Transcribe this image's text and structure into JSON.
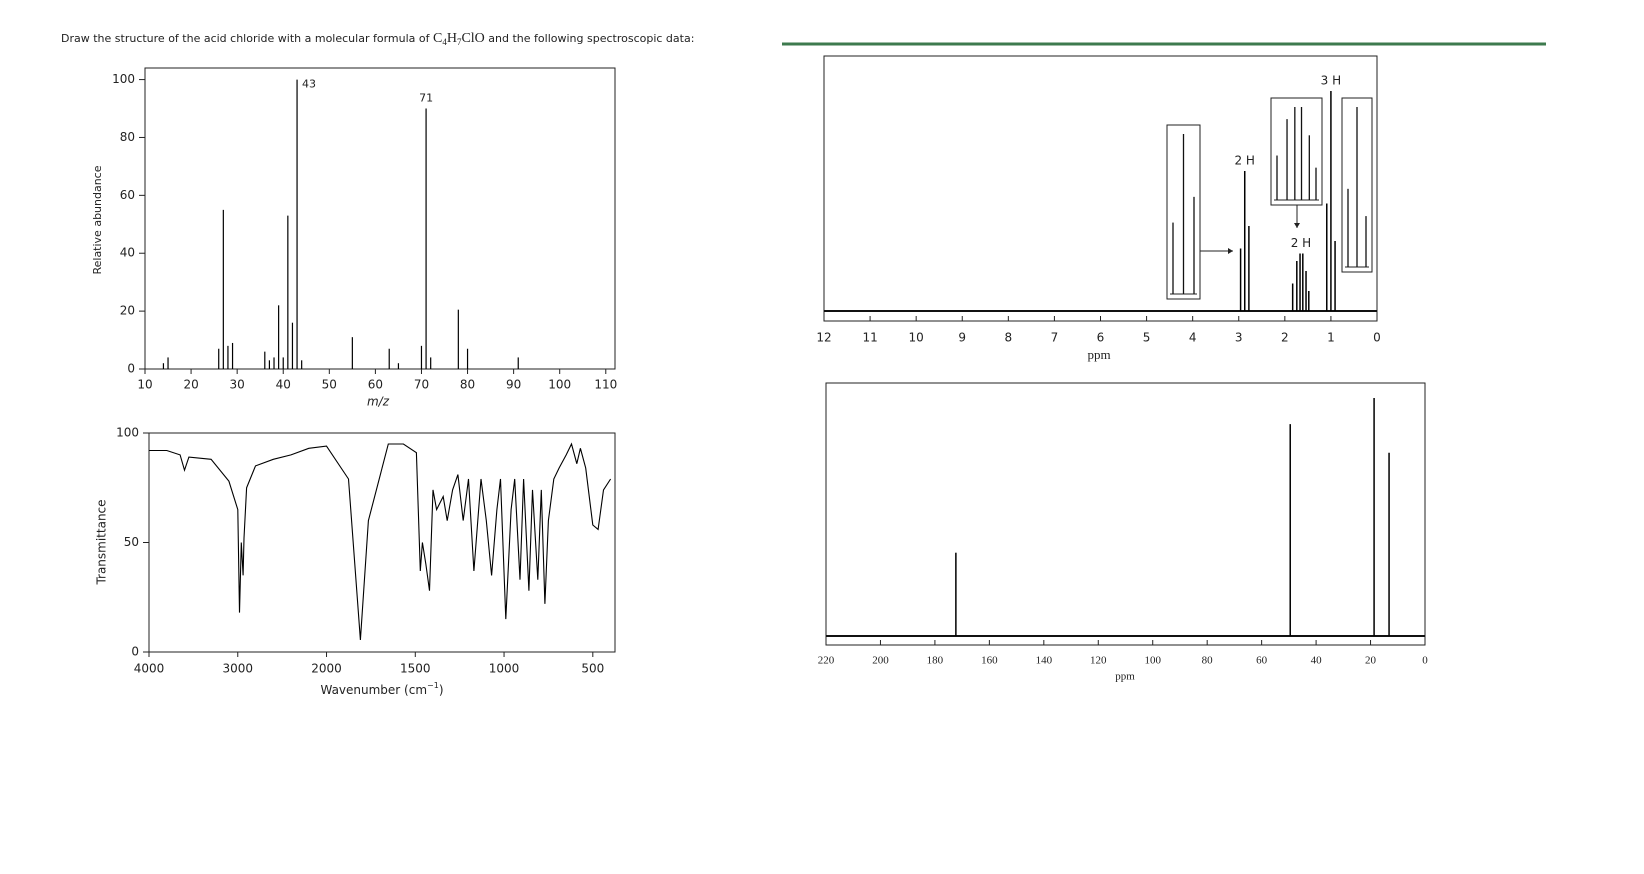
{
  "question": {
    "before": "Draw the structure of the acid chloride with a molecular formula of",
    "formula": [
      "C",
      "4",
      "H",
      "7",
      "ClO"
    ],
    "after": "and the following spectroscopic data:"
  },
  "chart_data": [
    {
      "type": "bar",
      "xlabel": "m/z",
      "ylabel": "Relative abundance",
      "x": [
        14,
        15,
        26,
        27,
        28,
        29,
        36,
        37,
        38,
        39,
        40,
        41,
        42,
        43,
        44,
        55,
        63,
        65,
        70,
        71,
        72,
        78,
        80,
        91
      ],
      "values": [
        2,
        4,
        7,
        55,
        8,
        9,
        6,
        3,
        4,
        22,
        4,
        53,
        16,
        100,
        3,
        11,
        7,
        2,
        8,
        90,
        4,
        20.5,
        7,
        4
      ],
      "annotations": [
        43,
        71
      ],
      "color": "#000000",
      "xlim": [
        10,
        112
      ],
      "xticks": [
        10,
        20,
        30,
        40,
        50,
        60,
        70,
        80,
        90,
        100,
        110
      ],
      "ylim": [
        0,
        104
      ],
      "yticks": [
        0,
        20,
        40,
        60,
        80,
        100
      ]
    },
    {
      "type": "line",
      "xlabel": [
        "Wavenumber (cm",
        "−1",
        ")"
      ],
      "ylabel": "Transmittance",
      "x": [
        4000,
        3800,
        3650,
        3600,
        3550,
        3300,
        3100,
        3000,
        2980,
        2960,
        2940,
        2930,
        2900,
        2800,
        2600,
        2400,
        2200,
        2000,
        1876,
        1809,
        1764,
        1652,
        1567,
        1494,
        1472,
        1460,
        1440,
        1420,
        1400,
        1380,
        1343,
        1320,
        1290,
        1260,
        1230,
        1200,
        1170,
        1130,
        1100,
        1070,
        1040,
        1020,
        990,
        960,
        940,
        910,
        890,
        860,
        840,
        810,
        790,
        770,
        750,
        720,
        690,
        650,
        620,
        590,
        570,
        540,
        500,
        470,
        440,
        400
      ],
      "values": [
        92,
        92,
        90,
        83,
        89,
        88,
        78,
        65,
        18,
        50,
        35,
        52,
        75,
        85,
        88,
        90,
        93,
        94,
        79,
        5.5,
        60,
        95,
        95,
        91,
        37,
        50,
        40,
        28,
        74,
        65,
        71,
        60,
        74,
        81,
        60,
        79,
        37,
        79,
        60,
        35,
        65,
        79,
        15,
        65,
        79,
        33,
        79,
        28,
        74,
        33,
        74,
        22,
        60,
        79,
        84,
        90,
        95,
        86,
        93,
        84,
        58,
        56,
        74,
        79
      ],
      "color": "#000000",
      "xbreak": 2000,
      "xlim": [
        4000,
        375
      ],
      "xticks": [
        4000,
        3000,
        2000,
        1500,
        1000,
        500
      ],
      "ylim": [
        0,
        100
      ],
      "yticks": [
        0,
        50,
        100
      ]
    },
    {
      "type": "nmr",
      "xlabel": "ppm",
      "x": [
        2.96,
        2.87,
        2.78,
        1.83,
        1.74,
        1.67,
        1.61,
        1.54,
        1.48,
        1.09,
        1.0,
        0.91
      ],
      "values": [
        25,
        56,
        34,
        11,
        20,
        23,
        23,
        16,
        8,
        43,
        88,
        28
      ],
      "integrations": [
        {
          "x": 2.87,
          "label": "2 H"
        },
        {
          "x": 1.65,
          "label": "2 H"
        },
        {
          "x": 1.0,
          "label": "3 H"
        }
      ],
      "color": "#000000",
      "xlim": [
        12,
        0
      ],
      "xticks": [
        12,
        11,
        10,
        9,
        8,
        7,
        6,
        5,
        4,
        3,
        2,
        1,
        0
      ],
      "ylim": [
        0,
        100
      ]
    },
    {
      "type": "nmr",
      "xlabel": "ppm",
      "x": [
        172.3,
        49.5,
        18.7,
        13.2
      ],
      "values": [
        35,
        89,
        100,
        77
      ],
      "color": "#000000",
      "xlim": [
        220,
        0
      ],
      "xticks": [
        220,
        200,
        180,
        160,
        140,
        120,
        100,
        80,
        60,
        40,
        20,
        0
      ],
      "ylim": [
        0,
        100
      ]
    }
  ]
}
